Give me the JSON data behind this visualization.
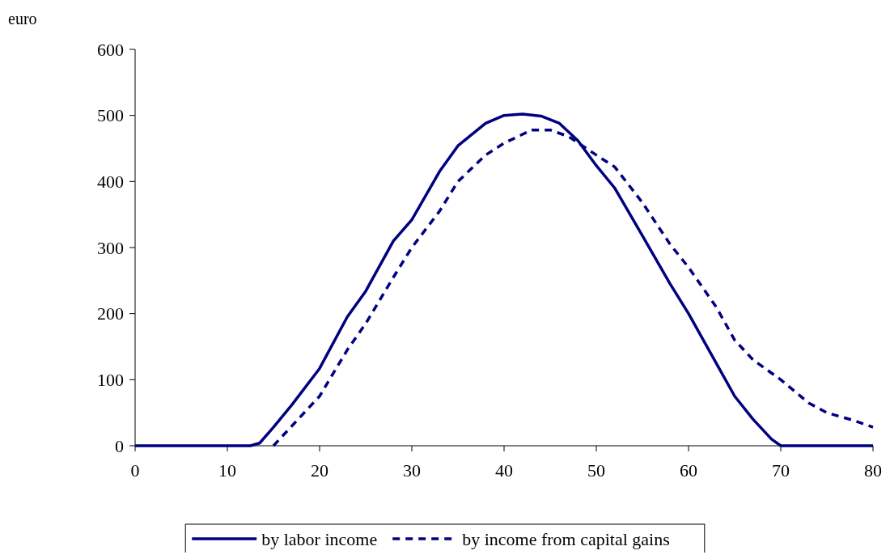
{
  "chart_data": {
    "type": "line",
    "ylabel": "euro",
    "xlim": [
      0,
      80
    ],
    "ylim": [
      0,
      600
    ],
    "xticks": [
      0,
      10,
      20,
      30,
      40,
      50,
      60,
      70,
      80
    ],
    "yticks": [
      0,
      100,
      200,
      300,
      400,
      500,
      600
    ],
    "grid": false,
    "legend": "bottom",
    "series": [
      {
        "name": "by labor income",
        "color": "#000080",
        "line_style": "solid",
        "x": [
          0,
          12.5,
          13.5,
          15,
          17,
          20,
          23,
          25,
          28,
          30,
          33,
          35,
          38,
          40,
          42,
          44,
          46,
          48,
          50,
          52,
          55,
          58,
          60,
          63,
          65,
          67,
          69,
          70,
          70.5,
          80
        ],
        "values": [
          0,
          0,
          4,
          28,
          62,
          117,
          195,
          234,
          310,
          342,
          415,
          454,
          488,
          500,
          502,
          499,
          488,
          462,
          424,
          390,
          318,
          245,
          200,
          125,
          75,
          40,
          10,
          0,
          0,
          0
        ]
      },
      {
        "name": "by income from capital gains",
        "color": "#000080",
        "line_style": "dashed",
        "x": [
          15,
          17,
          20,
          23,
          25,
          28,
          30,
          33,
          35,
          38,
          40,
          43,
          45,
          47,
          50,
          52,
          55,
          58,
          60,
          63,
          65,
          67,
          70,
          73,
          75,
          78,
          80
        ],
        "values": [
          0,
          30,
          75,
          145,
          185,
          255,
          300,
          355,
          400,
          440,
          458,
          478,
          478,
          468,
          440,
          422,
          368,
          305,
          270,
          210,
          160,
          130,
          100,
          65,
          50,
          38,
          28
        ]
      }
    ]
  }
}
